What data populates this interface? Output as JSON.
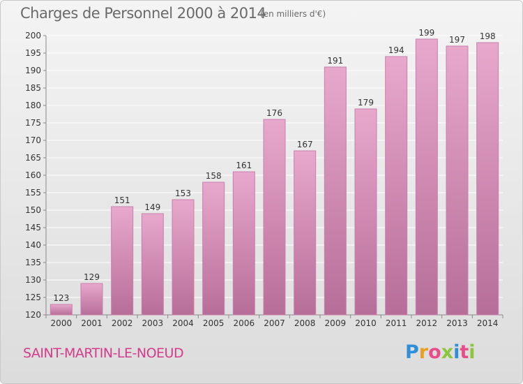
{
  "header": {
    "title": "Charges de Personnel 2000 à 2014",
    "subtitle": "(en milliers d'€)"
  },
  "footer": {
    "municipality": "SAINT-MARTIN-LE-NOEUD",
    "logo_text": "Proxiti",
    "logo_letters": [
      {
        "char": "P",
        "color": "#2e8fd8"
      },
      {
        "char": "r",
        "color": "#e8a020"
      },
      {
        "char": "o",
        "color": "#e84d8a"
      },
      {
        "char": "x",
        "color": "#8cc63f"
      },
      {
        "char": "i",
        "color": "#2e8fd8"
      },
      {
        "char": "t",
        "color": "#e84d8a"
      },
      {
        "char": "i",
        "color": "#8cc63f"
      }
    ]
  },
  "colors": {
    "bar_top": "#e8a8cc",
    "bar_bottom": "#b66e99",
    "bar_edge": "#c97fab",
    "grid": "#ffffff",
    "axis_text": "#333333"
  },
  "chart_data": {
    "type": "bar",
    "title": "Charges de Personnel 2000 à 2014",
    "subtitle": "(en milliers d'€)",
    "categories": [
      "2000",
      "2001",
      "2002",
      "2003",
      "2004",
      "2005",
      "2006",
      "2007",
      "2008",
      "2009",
      "2010",
      "2011",
      "2012",
      "2013",
      "2014"
    ],
    "values": [
      123,
      129,
      151,
      149,
      153,
      158,
      161,
      176,
      167,
      191,
      179,
      194,
      199,
      197,
      198
    ],
    "data_labels": [
      "123",
      "129",
      "151",
      "149",
      "153",
      "158",
      "161",
      "176",
      "167",
      "191",
      "179",
      "194",
      "199",
      "197",
      "198"
    ],
    "ylim": [
      120,
      200
    ],
    "yticks": [
      120,
      125,
      130,
      135,
      140,
      145,
      150,
      155,
      160,
      165,
      170,
      175,
      180,
      185,
      190,
      195,
      200
    ],
    "xlabel": "",
    "ylabel": "",
    "grid": true,
    "legend": "none"
  }
}
